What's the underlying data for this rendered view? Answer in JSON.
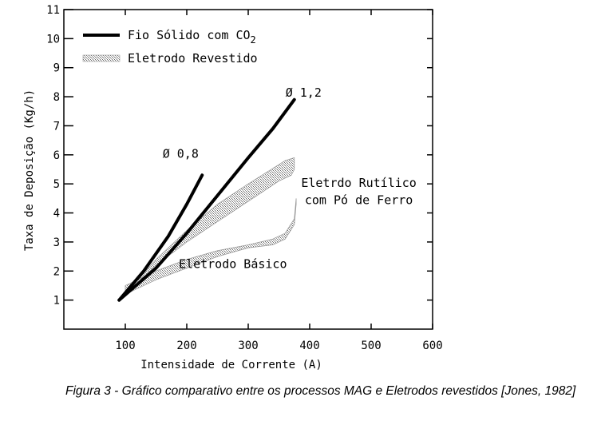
{
  "chart_data": {
    "type": "line",
    "xlabel": "Intensidade de Corrente (A)",
    "ylabel": "Taxa de Deposição (Kg/h)",
    "xlim": [
      0,
      600
    ],
    "ylim": [
      0,
      11
    ],
    "x_ticks": [
      100,
      200,
      300,
      400,
      500,
      600
    ],
    "y_ticks": [
      1,
      2,
      3,
      4,
      5,
      6,
      7,
      8,
      9,
      10,
      11
    ],
    "grid": false,
    "legend_position": "top-left",
    "legend": [
      {
        "label": "Fio Sólido com CO",
        "subscript": "2",
        "style": "solid-thick",
        "color": "#000000"
      },
      {
        "label": "Eletrodo  Revestido",
        "style": "hatched",
        "color": "#8c8c8c"
      }
    ],
    "series": [
      {
        "name": "Ø 0,8",
        "group": "Fio Sólido com CO2",
        "x": [
          90,
          130,
          170,
          200,
          225
        ],
        "y": [
          1.0,
          2.0,
          3.2,
          4.3,
          5.3
        ]
      },
      {
        "name": "Ø 1,2",
        "group": "Fio Sólido com CO2",
        "x": [
          90,
          150,
          200,
          250,
          300,
          340,
          375
        ],
        "y": [
          1.0,
          2.1,
          3.3,
          4.6,
          5.9,
          6.9,
          7.9
        ]
      }
    ],
    "regions": [
      {
        "name": "Eletrdo Rutílico\ncom Pó de Ferro",
        "group": "Eletrodo Revestido",
        "upper": {
          "x": [
            100,
            150,
            200,
            250,
            300,
            360,
            375
          ],
          "y": [
            1.2,
            2.4,
            3.4,
            4.3,
            5.0,
            5.8,
            5.9
          ]
        },
        "lower": {
          "x": [
            100,
            150,
            200,
            250,
            300,
            350,
            370,
            375
          ],
          "y": [
            1.2,
            2.2,
            3.0,
            3.7,
            4.4,
            5.1,
            5.3,
            5.5
          ]
        }
      },
      {
        "name": "Eletrodo Básico",
        "group": "Eletrodo Revestido",
        "upper": {
          "x": [
            100,
            150,
            200,
            250,
            300,
            340,
            360,
            375,
            378
          ],
          "y": [
            1.5,
            2.0,
            2.4,
            2.7,
            2.9,
            3.1,
            3.3,
            3.8,
            4.5
          ]
        },
        "lower": {
          "x": [
            100,
            150,
            200,
            250,
            300,
            340,
            360,
            375,
            378
          ],
          "y": [
            1.2,
            1.7,
            2.1,
            2.5,
            2.8,
            2.9,
            3.1,
            3.6,
            4.3
          ]
        }
      }
    ],
    "annotations": [
      {
        "text": "Ø 0,8",
        "x": 190,
        "y": 5.9
      },
      {
        "text": "Ø 1,2",
        "x": 390,
        "y": 8.0
      },
      {
        "text": "Eletrdo Rutílico",
        "x": 480,
        "y": 4.9
      },
      {
        "text": "com Pó de Ferro",
        "x": 480,
        "y": 4.3
      },
      {
        "text": "Eletrodo Básico",
        "x": 275,
        "y": 2.1
      }
    ]
  },
  "caption": "Figura 3 - Gráfico comparativo entre os processos MAG e Eletrodos revestidos [Jones, 1982]"
}
